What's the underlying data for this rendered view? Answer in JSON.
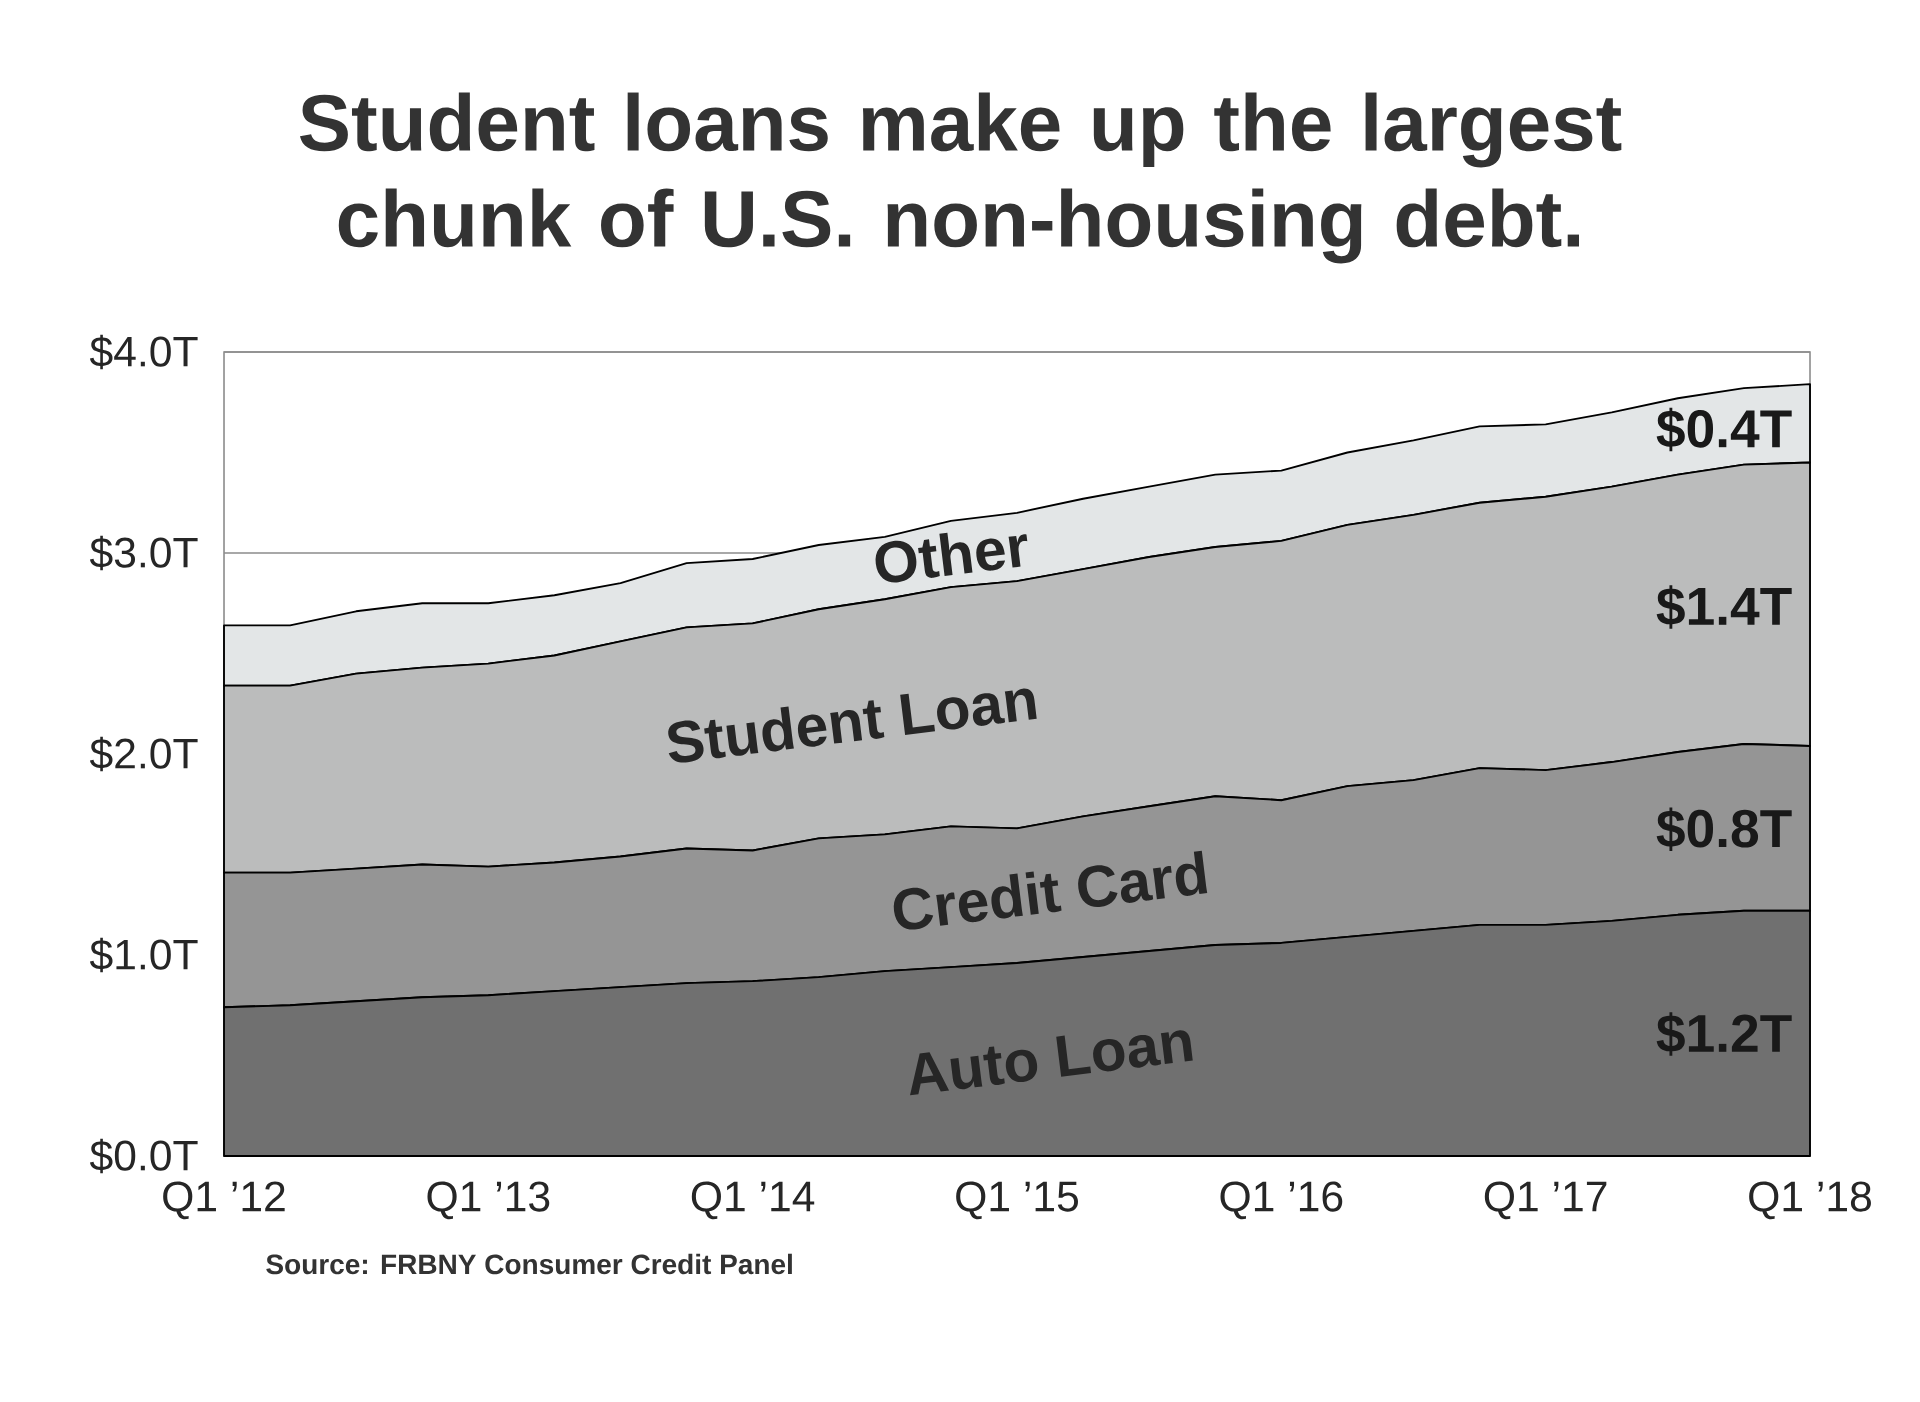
{
  "chart_data": {
    "type": "area",
    "stacked": true,
    "title": "Student loans make up the largest chunk of U.S. non-housing debt.",
    "categories": [
      "Q1 ’12",
      null,
      null,
      null,
      "Q1 ’13",
      null,
      null,
      null,
      "Q1 ’14",
      null,
      null,
      null,
      "Q1 ’15",
      null,
      null,
      null,
      "Q1 ’16",
      null,
      null,
      null,
      "Q1 ’17",
      null,
      null,
      null,
      "Q1 ’18"
    ],
    "series": [
      {
        "name": "Auto Loan",
        "color": "#707070",
        "values": [
          0.74,
          0.75,
          0.77,
          0.79,
          0.8,
          0.82,
          0.84,
          0.86,
          0.87,
          0.89,
          0.92,
          0.94,
          0.96,
          0.99,
          1.02,
          1.05,
          1.06,
          1.09,
          1.12,
          1.15,
          1.15,
          1.17,
          1.2,
          1.22,
          1.22
        ],
        "value_labels": [
          null,
          null,
          null,
          null,
          null,
          null,
          null,
          null,
          null,
          null,
          null,
          null,
          null,
          null,
          null,
          null,
          null,
          null,
          null,
          null,
          null,
          null,
          null,
          null,
          "$1.2T"
        ]
      },
      {
        "name": "Credit Card",
        "color": "#959595",
        "values": [
          0.67,
          0.66,
          0.66,
          0.66,
          0.64,
          0.64,
          0.65,
          0.67,
          0.65,
          0.69,
          0.68,
          0.7,
          0.67,
          0.7,
          0.72,
          0.74,
          0.71,
          0.75,
          0.75,
          0.78,
          0.77,
          0.79,
          0.81,
          0.83,
          0.82
        ],
        "value_labels": [
          null,
          null,
          null,
          null,
          null,
          null,
          null,
          null,
          null,
          null,
          null,
          null,
          null,
          null,
          null,
          null,
          null,
          null,
          null,
          null,
          null,
          null,
          null,
          null,
          "$0.8T"
        ]
      },
      {
        "name": "Student Loan",
        "color": "#bbbcbc",
        "values": [
          0.93,
          0.93,
          0.97,
          0.98,
          1.01,
          1.03,
          1.07,
          1.1,
          1.13,
          1.14,
          1.17,
          1.19,
          1.23,
          1.23,
          1.24,
          1.24,
          1.29,
          1.3,
          1.32,
          1.32,
          1.36,
          1.37,
          1.38,
          1.39,
          1.41
        ],
        "value_labels": [
          null,
          null,
          null,
          null,
          null,
          null,
          null,
          null,
          null,
          null,
          null,
          null,
          null,
          null,
          null,
          null,
          null,
          null,
          null,
          null,
          null,
          null,
          null,
          null,
          "$1.4T"
        ]
      },
      {
        "name": "Other",
        "color": "#e3e6e7",
        "values": [
          0.3,
          0.3,
          0.31,
          0.32,
          0.3,
          0.3,
          0.29,
          0.32,
          0.32,
          0.32,
          0.31,
          0.33,
          0.34,
          0.35,
          0.35,
          0.36,
          0.35,
          0.36,
          0.37,
          0.38,
          0.36,
          0.37,
          0.38,
          0.38,
          0.39
        ],
        "value_labels": [
          null,
          null,
          null,
          null,
          null,
          null,
          null,
          null,
          null,
          null,
          null,
          null,
          null,
          null,
          null,
          null,
          null,
          null,
          null,
          null,
          null,
          null,
          null,
          null,
          "$0.4T"
        ]
      }
    ],
    "ylim": [
      0,
      4
    ],
    "yticks": [
      {
        "value": 0,
        "label": "$0.0T"
      },
      {
        "value": 1,
        "label": "$1.0T"
      },
      {
        "value": 2,
        "label": "$2.0T"
      },
      {
        "value": 3,
        "label": "$3.0T"
      },
      {
        "value": 4,
        "label": "$4.0T"
      }
    ],
    "grid": "y",
    "annotations": [
      "Source: FRBNY Consumer Credit Panel"
    ]
  }
}
